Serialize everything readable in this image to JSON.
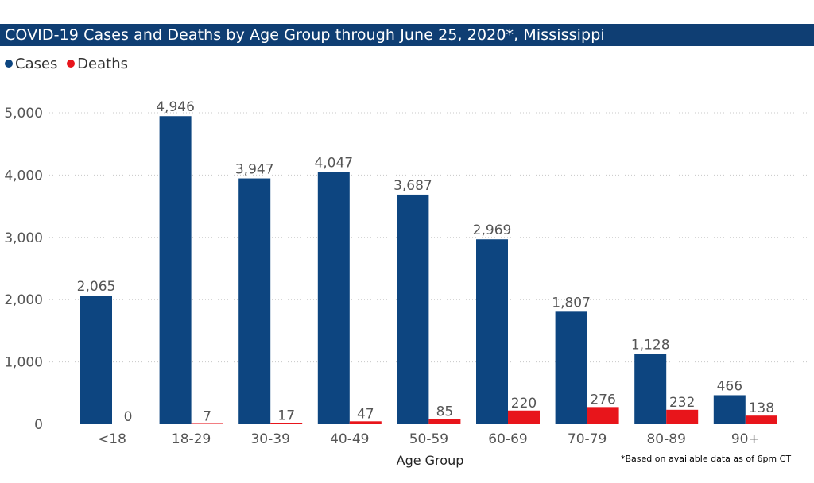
{
  "title": "COVID-19 Cases and Deaths by Age Group through June 25, 2020*, Mississippi",
  "footnote": "*Based on available data as of 6pm CT",
  "colors": {
    "title_bar": "#0f3e73",
    "cases": "#0d4580",
    "deaths": "#e8151b"
  },
  "chart_data": {
    "type": "bar",
    "title": "COVID-19 Cases and Deaths by Age Group through June 25, 2020*, Mississippi",
    "xlabel": "Age Group",
    "ylabel": "",
    "ylim": [
      0,
      5000
    ],
    "yticks": [
      "0",
      "1,000",
      "2,000",
      "3,000",
      "4,000",
      "5,000"
    ],
    "ytick_values": [
      0,
      1000,
      2000,
      3000,
      4000,
      5000
    ],
    "grid": true,
    "legend": "top-left",
    "categories": [
      "<18",
      "18-29",
      "30-39",
      "40-49",
      "50-59",
      "60-69",
      "70-79",
      "80-89",
      "90+"
    ],
    "series": [
      {
        "name": "Cases",
        "color": "#0d4580",
        "values": [
          2065,
          4946,
          3947,
          4047,
          3687,
          2969,
          1807,
          1128,
          466
        ],
        "labels": [
          "2,065",
          "4,946",
          "3,947",
          "4,047",
          "3,687",
          "2,969",
          "1,807",
          "1,128",
          "466"
        ]
      },
      {
        "name": "Deaths",
        "color": "#e8151b",
        "values": [
          0,
          7,
          17,
          47,
          85,
          220,
          276,
          232,
          138
        ],
        "labels": [
          "0",
          "7",
          "17",
          "47",
          "85",
          "220",
          "276",
          "232",
          "138"
        ]
      }
    ]
  }
}
